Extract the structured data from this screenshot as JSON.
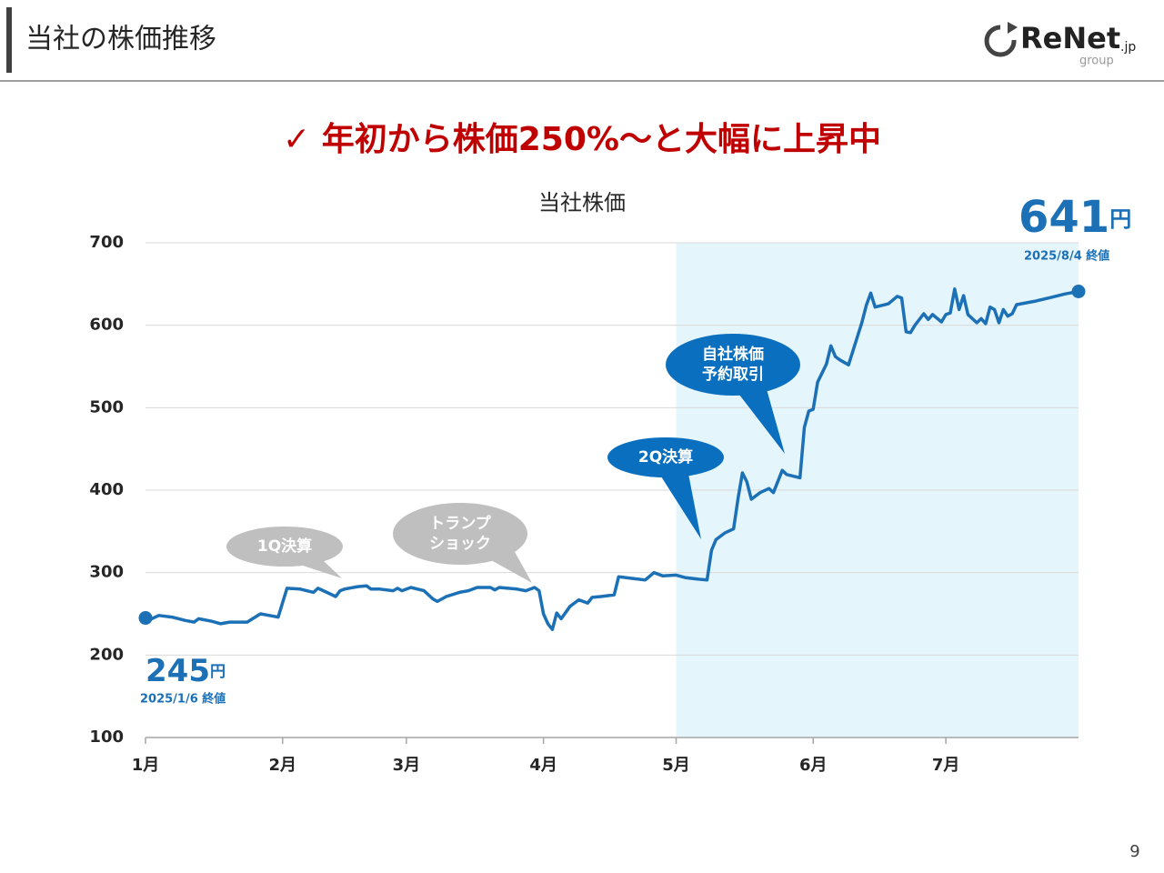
{
  "header": {
    "title": "当社の株価推移",
    "logo": {
      "name": "ReNet",
      "suffix": ".jp",
      "sub": "group"
    }
  },
  "headline": "✓ 年初から株価250%～と大幅に上昇中",
  "page_number": "9",
  "chart_data": {
    "type": "line",
    "title": "当社株価",
    "xlim": [
      1,
      212
    ],
    "xticks": [
      {
        "value": 1,
        "label": "1月"
      },
      {
        "value": 32,
        "label": "2月"
      },
      {
        "value": 60,
        "label": "3月"
      },
      {
        "value": 91,
        "label": "4月"
      },
      {
        "value": 121,
        "label": "5月"
      },
      {
        "value": 152,
        "label": "6月"
      },
      {
        "value": 182,
        "label": "7月"
      }
    ],
    "ylim": [
      100,
      700
    ],
    "yticks": [
      100,
      200,
      300,
      400,
      500,
      600,
      700
    ],
    "grid": true,
    "highlight_from": 121,
    "highlight_color": "#e5f5fc",
    "series": [
      {
        "name": "当社株価",
        "color": "#1b70b6",
        "x": [
          1,
          2,
          4,
          7,
          10,
          12,
          13,
          16,
          18,
          20,
          24,
          27,
          30,
          31,
          33,
          36,
          39,
          40,
          42,
          44,
          45,
          46,
          49,
          51,
          52,
          54,
          57,
          58,
          59,
          61,
          64,
          66,
          67,
          69,
          72,
          74,
          76,
          79,
          80,
          81,
          85,
          87,
          89,
          90,
          91,
          92,
          93,
          94,
          95,
          97,
          99,
          101,
          102,
          104,
          107,
          108,
          111,
          114,
          116,
          118,
          121,
          123,
          126,
          128,
          129,
          130,
          132,
          134,
          135,
          136,
          137,
          138,
          140,
          142,
          143,
          145,
          146,
          149,
          150,
          151,
          152,
          153,
          155,
          156,
          157,
          158,
          160,
          163,
          164,
          165,
          166,
          169,
          171,
          172,
          173,
          174,
          175,
          177,
          178,
          179,
          181,
          182,
          183,
          184,
          185,
          186,
          187,
          189,
          190,
          191,
          192,
          193,
          194,
          195,
          196,
          197,
          198,
          202,
          206,
          209,
          212
        ],
        "values": [
          245,
          243,
          248,
          246,
          242,
          240,
          244,
          241,
          238,
          240,
          240,
          250,
          247,
          246,
          281,
          280,
          276,
          281,
          276,
          271,
          278,
          280,
          283,
          284,
          280,
          280,
          278,
          281,
          278,
          282,
          278,
          268,
          265,
          271,
          276,
          278,
          282,
          282,
          279,
          282,
          280,
          278,
          282,
          278,
          250,
          238,
          231,
          251,
          244,
          259,
          267,
          263,
          270,
          271,
          273,
          295,
          293,
          291,
          300,
          296,
          297,
          294,
          292,
          291,
          327,
          340,
          348,
          353,
          390,
          421,
          410,
          389,
          397,
          402,
          397,
          424,
          419,
          415,
          476,
          496,
          498,
          531,
          553,
          575,
          562,
          558,
          552,
          603,
          624,
          639,
          622,
          626,
          635,
          633,
          592,
          591,
          600,
          614,
          607,
          613,
          604,
          613,
          615,
          644,
          619,
          636,
          613,
          603,
          608,
          602,
          622,
          619,
          603,
          619,
          611,
          614,
          625,
          629,
          634,
          638,
          641
        ]
      }
    ],
    "start_label": {
      "value": "245",
      "unit": "円",
      "note": "2025/1/6 終値"
    },
    "end_label": {
      "value": "641",
      "unit": "円",
      "note": "2025/8/4 終値"
    },
    "annotations": [
      {
        "lines": [
          "1Q決算"
        ],
        "color": "#bfbfbf"
      },
      {
        "lines": [
          "トランプ",
          "ショック"
        ],
        "color": "#bfbfbf"
      },
      {
        "lines": [
          "2Q決算"
        ],
        "color": "#0a6fbe"
      },
      {
        "lines": [
          "自社株価",
          "予約取引"
        ],
        "color": "#0a6fbe"
      }
    ]
  }
}
